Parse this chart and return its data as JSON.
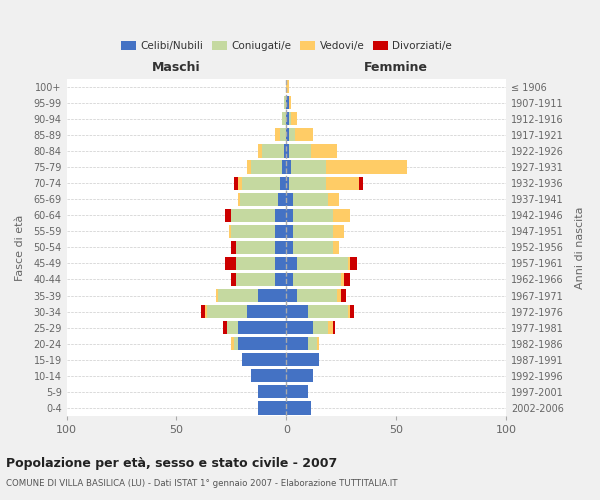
{
  "age_groups": [
    "0-4",
    "5-9",
    "10-14",
    "15-19",
    "20-24",
    "25-29",
    "30-34",
    "35-39",
    "40-44",
    "45-49",
    "50-54",
    "55-59",
    "60-64",
    "65-69",
    "70-74",
    "75-79",
    "80-84",
    "85-89",
    "90-94",
    "95-99",
    "100+"
  ],
  "birth_years": [
    "2002-2006",
    "1997-2001",
    "1992-1996",
    "1987-1991",
    "1982-1986",
    "1977-1981",
    "1972-1976",
    "1967-1971",
    "1962-1966",
    "1957-1961",
    "1952-1956",
    "1947-1951",
    "1942-1946",
    "1937-1941",
    "1932-1936",
    "1927-1931",
    "1922-1926",
    "1917-1921",
    "1912-1916",
    "1907-1911",
    "≤ 1906"
  ],
  "male_celibi": [
    13,
    13,
    16,
    20,
    22,
    22,
    18,
    13,
    5,
    5,
    5,
    5,
    5,
    4,
    3,
    2,
    1,
    0,
    0,
    0,
    0
  ],
  "male_coniugati": [
    0,
    0,
    0,
    0,
    2,
    5,
    18,
    18,
    18,
    18,
    18,
    20,
    20,
    17,
    17,
    14,
    10,
    3,
    2,
    1,
    0
  ],
  "male_vedovi": [
    0,
    0,
    0,
    0,
    1,
    0,
    1,
    1,
    0,
    0,
    0,
    1,
    0,
    1,
    2,
    2,
    2,
    2,
    0,
    0,
    0
  ],
  "male_divorziati": [
    0,
    0,
    0,
    0,
    0,
    2,
    2,
    0,
    2,
    5,
    2,
    0,
    3,
    0,
    2,
    0,
    0,
    0,
    0,
    0,
    0
  ],
  "female_celibi": [
    11,
    10,
    12,
    15,
    10,
    12,
    10,
    5,
    3,
    5,
    3,
    3,
    3,
    3,
    1,
    2,
    1,
    1,
    1,
    1,
    0
  ],
  "female_coniugati": [
    0,
    0,
    0,
    0,
    4,
    7,
    18,
    18,
    22,
    23,
    18,
    18,
    18,
    16,
    17,
    16,
    10,
    3,
    1,
    0,
    0
  ],
  "female_vedovi": [
    0,
    0,
    0,
    0,
    1,
    2,
    1,
    2,
    1,
    1,
    3,
    5,
    8,
    5,
    15,
    37,
    12,
    8,
    3,
    1,
    1
  ],
  "female_divorziati": [
    0,
    0,
    0,
    0,
    0,
    1,
    2,
    2,
    3,
    3,
    0,
    0,
    0,
    0,
    2,
    0,
    0,
    0,
    0,
    0,
    0
  ],
  "colors": {
    "celibi": "#4472C4",
    "coniugati": "#C5D9A0",
    "vedovi": "#FFCC66",
    "divorziati": "#CC0000"
  },
  "title": "Popolazione per età, sesso e stato civile - 2007",
  "subtitle": "COMUNE DI VILLA BASILICA (LU) - Dati ISTAT 1° gennaio 2007 - Elaborazione TUTTITALIA.IT",
  "ylabel_left": "Fasce di età",
  "ylabel_right": "Anni di nascita",
  "xlabel_left": "Maschi",
  "xlabel_right": "Femmine",
  "xlim": 100,
  "legend_labels": [
    "Celibi/Nubili",
    "Coniugati/e",
    "Vedovi/e",
    "Divorziati/e"
  ],
  "bg_color": "#f0f0f0",
  "plot_bg": "#ffffff"
}
